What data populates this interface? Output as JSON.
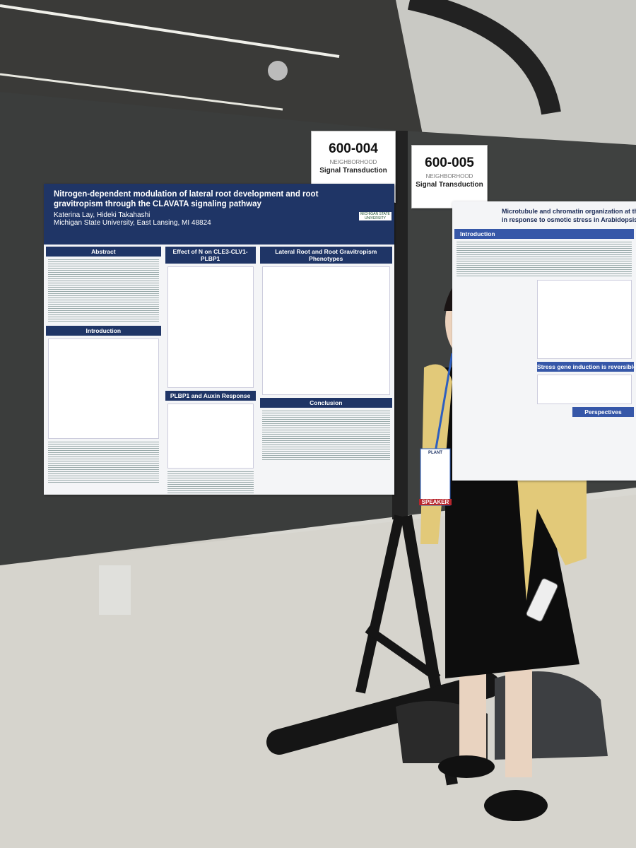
{
  "signs": [
    {
      "number": "600-004",
      "label": "NEIGHBORHOOD",
      "topic": "Signal Transduction"
    },
    {
      "number": "600-005",
      "label": "NEIGHBORHOOD",
      "topic": "Signal Transduction"
    }
  ],
  "poster_left": {
    "title": "Nitrogen-dependent modulation of lateral root development and root gravitropism through the CLAVATA signaling pathway",
    "authors": "Katerina Lay, Hideki Takahashi",
    "affiliation": "Michigan State University, East Lansing, MI 48824",
    "logo": "MICHIGAN STATE UNIVERSITY",
    "sections": [
      "Abstract",
      "Effect of N on CLE3-CLV1-PLBP1",
      "Lateral Root and Root Gravitropism Phenotypes",
      "Introduction",
      "PLBP1 and Auxin Response",
      "Conclusion"
    ]
  },
  "poster_right": {
    "title_line1": "Microtubule and chromatin organization at the nucleo-cytoplasmic",
    "title_line2": "in response to osmotic stress in Arabidopsis: link to nuclear rig",
    "sections": [
      "Introduction",
      "Stress gene induction is reversible in WT but",
      "Perspectives"
    ]
  },
  "badge": {
    "role": "SPEAKER",
    "event": "PLANT"
  }
}
